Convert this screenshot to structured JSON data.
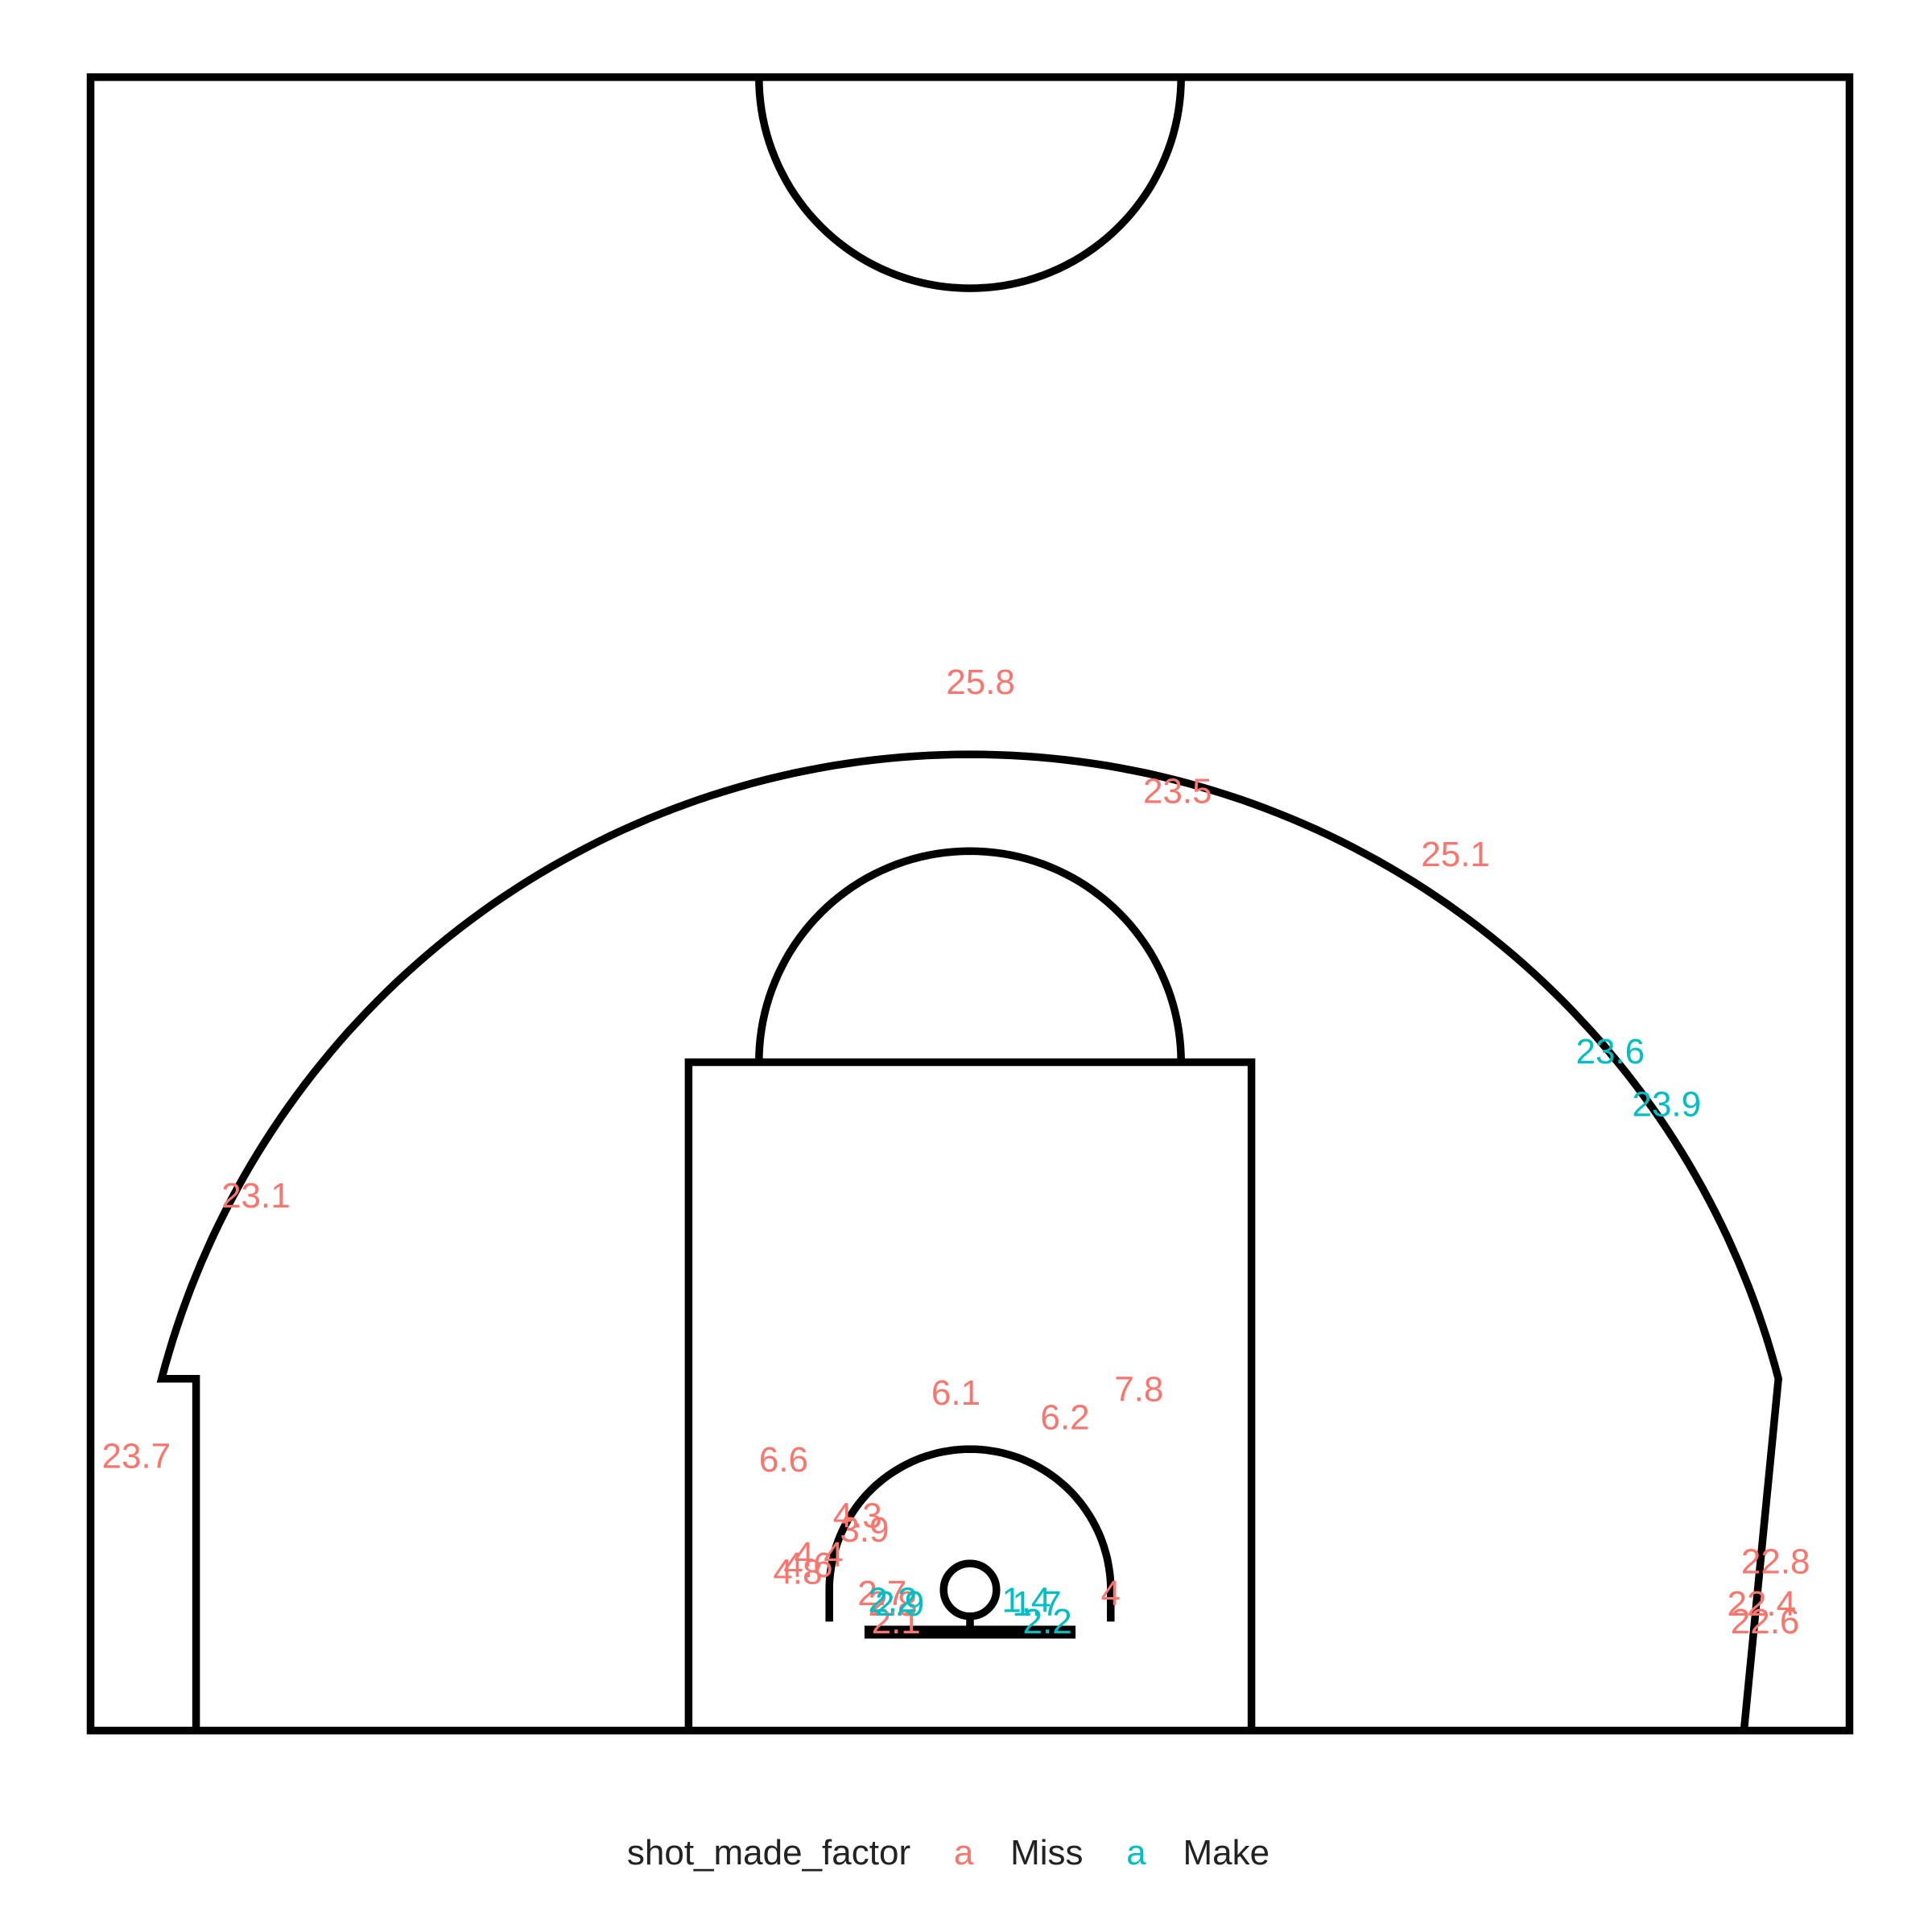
{
  "chart_data": {
    "type": "scatter",
    "title": "",
    "xlabel": "",
    "ylabel": "",
    "grid": false,
    "legend_position": "bottom",
    "xlim": [
      -25,
      25
    ],
    "ylim": [
      -4,
      43
    ],
    "legend": {
      "title": "shot_made_factor",
      "key_glyph": "a",
      "entries": [
        {
          "label": "Miss",
          "color": "#F8766D"
        },
        {
          "label": "Make",
          "color": "#00BFC4"
        }
      ]
    },
    "series": [
      {
        "name": "Miss",
        "color": "#F8766D",
        "points": [
          {
            "x": 0.3,
            "y": 25.8,
            "label": "25.8"
          },
          {
            "x": 5.9,
            "y": 22.7,
            "label": "23.5"
          },
          {
            "x": 13.8,
            "y": 20.9,
            "label": "25.1"
          },
          {
            "x": -20.3,
            "y": 11.2,
            "label": "23.1"
          },
          {
            "x": -23.7,
            "y": 3.8,
            "label": "23.7"
          },
          {
            "x": 22.9,
            "y": 0.8,
            "label": "22.8"
          },
          {
            "x": 22.5,
            "y": -0.4,
            "label": "22.4"
          },
          {
            "x": 22.6,
            "y": -0.9,
            "label": "22.6"
          },
          {
            "x": -0.4,
            "y": 5.6,
            "label": "6.1"
          },
          {
            "x": 2.7,
            "y": 4.9,
            "label": "6.2"
          },
          {
            "x": 4.8,
            "y": 5.7,
            "label": "7.8"
          },
          {
            "x": -5.3,
            "y": 3.7,
            "label": "6.6"
          },
          {
            "x": -3.2,
            "y": 2.1,
            "label": "4.3"
          },
          {
            "x": -3.0,
            "y": 1.7,
            "label": "3.9"
          },
          {
            "x": -4.3,
            "y": 1.0,
            "label": "4.4"
          },
          {
            "x": -4.6,
            "y": 0.7,
            "label": "4.6"
          },
          {
            "x": -4.9,
            "y": 0.5,
            "label": "4.8"
          },
          {
            "x": -2.5,
            "y": -0.1,
            "label": "2.7"
          },
          {
            "x": -2.2,
            "y": -0.4,
            "label": "2.8"
          },
          {
            "x": -2.1,
            "y": -0.9,
            "label": "2.1"
          },
          {
            "x": 4.0,
            "y": -0.1,
            "label": "4"
          }
        ]
      },
      {
        "name": "Make",
        "color": "#00BFC4",
        "points": [
          {
            "x": 18.2,
            "y": 15.3,
            "label": "23.6"
          },
          {
            "x": 19.8,
            "y": 13.8,
            "label": "23.9"
          },
          {
            "x": -2.2,
            "y": -0.3,
            "label": "2.2"
          },
          {
            "x": -2.0,
            "y": -0.4,
            "label": "2.9"
          },
          {
            "x": 1.6,
            "y": -0.3,
            "label": "1.4"
          },
          {
            "x": 1.9,
            "y": -0.4,
            "label": "1.7"
          },
          {
            "x": 2.2,
            "y": -0.9,
            "label": "2.2"
          }
        ]
      }
    ]
  }
}
